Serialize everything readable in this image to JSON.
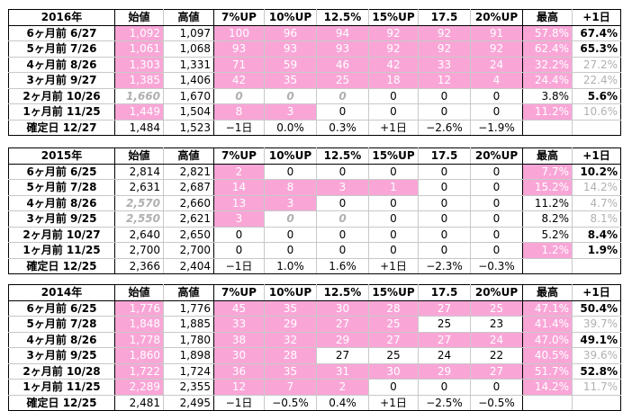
{
  "headers": [
    "始値",
    "高値",
    "7%UP",
    "10%UP",
    "12.5%",
    "15%UP",
    "17.5",
    "20%UP",
    "最高",
    "+1日"
  ],
  "colors": {
    "pink": "#f9a6d7",
    "gray": "#b0b0b0"
  },
  "sections": [
    {
      "year": "2016年",
      "rows": [
        {
          "label": "6ヶ月前 6/27",
          "cells": [
            "1,092",
            "1,097",
            "100",
            "96",
            "94",
            "92",
            "92",
            "91",
            "57.8%",
            "67.4%"
          ],
          "pink": [
            0,
            2,
            3,
            4,
            5,
            6,
            7,
            8
          ],
          "gray": [],
          "ital": [],
          "bold": [
            9
          ]
        },
        {
          "label": "5ヶ月前 7/26",
          "cells": [
            "1,061",
            "1,068",
            "93",
            "93",
            "93",
            "92",
            "92",
            "92",
            "62.4%",
            "65.3%"
          ],
          "pink": [
            0,
            2,
            3,
            4,
            5,
            6,
            7,
            8
          ],
          "gray": [],
          "ital": [],
          "bold": [
            9
          ]
        },
        {
          "label": "4ヶ月前 8/26",
          "cells": [
            "1,303",
            "1,331",
            "71",
            "59",
            "46",
            "42",
            "33",
            "24",
            "32.2%",
            "27.2%"
          ],
          "pink": [
            0,
            2,
            3,
            4,
            5,
            6,
            7,
            8
          ],
          "gray": [
            9
          ],
          "ital": [],
          "bold": []
        },
        {
          "label": "3ヶ月前 9/27",
          "cells": [
            "1,385",
            "1,406",
            "42",
            "35",
            "25",
            "18",
            "12",
            "4",
            "24.4%",
            "22.4%"
          ],
          "pink": [
            0,
            2,
            3,
            4,
            5,
            6,
            7,
            8
          ],
          "gray": [
            9
          ],
          "ital": [],
          "bold": []
        },
        {
          "label": "2ヶ月前 10/26",
          "cells": [
            "1,660",
            "1,670",
            "0",
            "0",
            "0",
            "0",
            "0",
            "0",
            "3.8%",
            "5.6%"
          ],
          "pink": [],
          "gray": [],
          "ital": [
            0,
            2,
            3,
            4
          ],
          "bold": [
            9
          ]
        },
        {
          "label": "1ヶ月前 11/25",
          "cells": [
            "1,449",
            "1,504",
            "8",
            "3",
            "0",
            "0",
            "0",
            "0",
            "11.2%",
            "10.6%"
          ],
          "pink": [
            0,
            2,
            3,
            8
          ],
          "gray": [
            9
          ],
          "ital": [],
          "bold": []
        }
      ],
      "final": {
        "label": "確定日 12/27",
        "cells": [
          "1,484",
          "1,523",
          "−1日",
          "0.0%",
          "0.3%",
          "+1日",
          "−2.6%",
          "−1.9%",
          "",
          ""
        ]
      }
    },
    {
      "year": "2015年",
      "rows": [
        {
          "label": "6ヶ月前 6/25",
          "cells": [
            "2,814",
            "2,821",
            "2",
            "0",
            "0",
            "0",
            "0",
            "0",
            "7.7%",
            "10.2%"
          ],
          "pink": [
            2,
            8
          ],
          "gray": [],
          "ital": [],
          "bold": [
            9
          ]
        },
        {
          "label": "5ヶ月前 7/28",
          "cells": [
            "2,631",
            "2,687",
            "14",
            "8",
            "3",
            "1",
            "0",
            "0",
            "15.2%",
            "14.2%"
          ],
          "pink": [
            2,
            3,
            4,
            5,
            8
          ],
          "gray": [
            9
          ],
          "ital": [],
          "bold": []
        },
        {
          "label": "4ヶ月前 8/26",
          "cells": [
            "2,570",
            "2,660",
            "13",
            "3",
            "0",
            "0",
            "0",
            "0",
            "11.2%",
            "4.7%"
          ],
          "pink": [
            2,
            3
          ],
          "gray": [
            9
          ],
          "ital": [
            0
          ],
          "bold": []
        },
        {
          "label": "3ヶ月前 9/25",
          "cells": [
            "2,550",
            "2,621",
            "3",
            "0",
            "0",
            "0",
            "0",
            "0",
            "8.2%",
            "8.1%"
          ],
          "pink": [
            2
          ],
          "gray": [
            9
          ],
          "ital": [
            0,
            3,
            4
          ],
          "bold": []
        },
        {
          "label": "2ヶ月前 10/27",
          "cells": [
            "2,640",
            "2,650",
            "0",
            "0",
            "0",
            "0",
            "0",
            "0",
            "5.2%",
            "8.4%"
          ],
          "pink": [],
          "gray": [],
          "ital": [],
          "bold": [
            9
          ]
        },
        {
          "label": "1ヶ月前 11/25",
          "cells": [
            "2,700",
            "2,700",
            "0",
            "0",
            "0",
            "0",
            "0",
            "0",
            "1.2%",
            "1.9%"
          ],
          "pink": [
            8
          ],
          "gray": [],
          "ital": [],
          "bold": [
            9
          ]
        }
      ],
      "final": {
        "label": "確定日 12/25",
        "cells": [
          "2,366",
          "2,404",
          "−1日",
          "1.0%",
          "1.6%",
          "+1日",
          "−2.3%",
          "−0.3%",
          "",
          ""
        ]
      }
    },
    {
      "year": "2014年",
      "rows": [
        {
          "label": "6ヶ月前 6/25",
          "cells": [
            "1,776",
            "1,776",
            "45",
            "35",
            "30",
            "28",
            "27",
            "25",
            "47.1%",
            "50.4%"
          ],
          "pink": [
            0,
            2,
            3,
            4,
            5,
            6,
            7,
            8
          ],
          "gray": [],
          "ital": [],
          "bold": [
            9
          ]
        },
        {
          "label": "5ヶ月前 7/28",
          "cells": [
            "1,848",
            "1,885",
            "33",
            "29",
            "27",
            "25",
            "25",
            "23",
            "41.4%",
            "39.7%"
          ],
          "pink": [
            0,
            2,
            3,
            4,
            5,
            8
          ],
          "gray": [
            9
          ],
          "ital": [],
          "bold": []
        },
        {
          "label": "4ヶ月前 8/26",
          "cells": [
            "1,778",
            "1,780",
            "38",
            "32",
            "29",
            "27",
            "27",
            "24",
            "47.0%",
            "49.1%"
          ],
          "pink": [
            0,
            2,
            3,
            4,
            5,
            6,
            7,
            8
          ],
          "gray": [],
          "ital": [],
          "bold": [
            9
          ]
        },
        {
          "label": "3ヶ月前 9/25",
          "cells": [
            "1,860",
            "1,898",
            "30",
            "28",
            "27",
            "25",
            "24",
            "22",
            "40.5%",
            "39.6%"
          ],
          "pink": [
            0,
            2,
            3,
            8
          ],
          "gray": [
            9
          ],
          "ital": [],
          "bold": []
        },
        {
          "label": "2ヶ月前 10/28",
          "cells": [
            "1,722",
            "1,724",
            "36",
            "35",
            "31",
            "30",
            "29",
            "27",
            "51.7%",
            "52.8%"
          ],
          "pink": [
            0,
            2,
            3,
            4,
            5,
            6,
            7,
            8
          ],
          "gray": [],
          "ital": [],
          "bold": [
            9
          ]
        },
        {
          "label": "1ヶ月前 11/25",
          "cells": [
            "2,289",
            "2,355",
            "12",
            "7",
            "2",
            "0",
            "0",
            "0",
            "14.2%",
            "11.7%"
          ],
          "pink": [
            0,
            2,
            3,
            4,
            8
          ],
          "gray": [
            9
          ],
          "ital": [],
          "bold": []
        }
      ],
      "final": {
        "label": "確定日 12/25",
        "cells": [
          "2,481",
          "2,495",
          "−1日",
          "−0.5%",
          "0.4%",
          "+1日",
          "−2.5%",
          "−0.5%",
          "",
          ""
        ]
      }
    }
  ]
}
